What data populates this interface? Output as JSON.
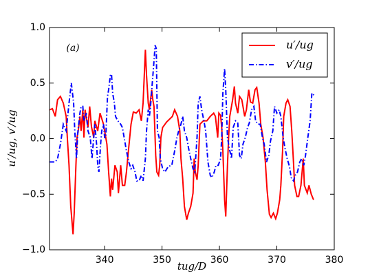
{
  "chart_data": {
    "type": "line",
    "annotation": "(a)",
    "xlabel": "tug/D",
    "ylabel": "u′/ug, v′/ug",
    "xlim": [
      330.4,
      380
    ],
    "xticks": [
      340,
      350,
      360,
      370,
      380
    ],
    "ylim": [
      -1,
      1
    ],
    "yticks": [
      {
        "value": -1,
        "label": "−1.0"
      },
      {
        "value": -0.5,
        "label": "−0.5"
      },
      {
        "value": 0,
        "label": "0.0"
      },
      {
        "value": 0.5,
        "label": "0.5"
      },
      {
        "value": 1,
        "label": "1.0"
      }
    ],
    "legend": "upper right",
    "series": [
      {
        "name": "u′/ug",
        "color": "#ff0000",
        "style": "solid",
        "x": [
          330.4,
          330.9,
          331.4,
          331.8,
          332.3,
          332.8,
          333.3,
          333.5,
          333.8,
          334.1,
          334.5,
          334.7,
          335.0,
          335.2,
          335.4,
          335.7,
          335.9,
          336.2,
          336.4,
          336.6,
          337.1,
          337.4,
          337.7,
          338.1,
          338.3,
          338.8,
          339.2,
          339.8,
          340.4,
          340.7,
          341.0,
          341.2,
          341.4,
          341.8,
          342.2,
          342.4,
          342.8,
          343.1,
          343.5,
          343.8,
          344.2,
          344.6,
          345.0,
          345.5,
          346.0,
          346.4,
          346.7,
          347.1,
          347.3,
          347.6,
          347.8,
          348.2,
          348.4,
          348.6,
          348.9,
          349.1,
          349.4,
          349.6,
          349.8,
          350.1,
          350.8,
          351.8,
          352.2,
          352.7,
          353.1,
          353.3,
          353.6,
          353.9,
          354.3,
          354.6,
          355.0,
          355.4,
          355.6,
          355.8,
          356.1,
          356.3,
          356.6,
          357.2,
          357.8,
          358.4,
          359.0,
          359.3,
          359.7,
          359.9,
          360.2,
          360.4,
          360.6,
          360.9,
          361.1,
          361.4,
          361.6,
          361.8,
          362.1,
          362.3,
          362.6,
          362.8,
          363.2,
          363.5,
          363.9,
          364.4,
          364.7,
          365.1,
          365.4,
          365.8,
          366.2,
          366.5,
          366.9,
          367.2,
          367.6,
          368.0,
          368.3,
          368.7,
          369.0,
          369.4,
          369.8,
          370.1,
          370.5,
          370.7,
          371.0,
          371.2,
          371.6,
          371.9,
          372.3,
          372.6,
          372.9,
          373.1,
          373.5,
          373.8,
          374.2,
          374.6,
          374.8,
          375.3,
          375.6,
          376.0,
          376.4
        ],
        "values": [
          0.26,
          0.27,
          0.2,
          0.35,
          0.38,
          0.32,
          0.2,
          0.01,
          -0.24,
          -0.61,
          -0.86,
          -0.67,
          -0.24,
          0.01,
          0.07,
          0.2,
          0.07,
          0.26,
          0.01,
          0.26,
          0.1,
          0.29,
          0.11,
          0.01,
          0.16,
          0.07,
          0.23,
          0.13,
          -0.05,
          -0.3,
          -0.52,
          -0.36,
          -0.46,
          -0.24,
          -0.3,
          -0.49,
          -0.24,
          -0.42,
          -0.42,
          -0.3,
          -0.08,
          0.13,
          0.24,
          0.23,
          0.26,
          0.16,
          0.32,
          0.8,
          0.57,
          0.32,
          0.26,
          0.44,
          0.35,
          0.29,
          -0.15,
          -0.3,
          -0.33,
          -0.24,
          0.01,
          0.1,
          0.15,
          0.2,
          0.26,
          0.2,
          0.07,
          -0.18,
          -0.36,
          -0.61,
          -0.73,
          -0.67,
          -0.61,
          -0.49,
          -0.18,
          -0.3,
          -0.37,
          -0.24,
          0.13,
          0.16,
          0.16,
          0.2,
          0.23,
          0.2,
          0.01,
          0.23,
          0.21,
          0.1,
          -0.11,
          -0.55,
          -0.7,
          -0.24,
          0.01,
          0.2,
          0.29,
          0.35,
          0.47,
          0.32,
          0.23,
          0.38,
          0.35,
          0.2,
          0.26,
          0.44,
          0.33,
          0.32,
          0.44,
          0.46,
          0.32,
          0.13,
          0.01,
          -0.21,
          -0.46,
          -0.68,
          -0.71,
          -0.67,
          -0.72,
          -0.67,
          -0.55,
          -0.42,
          -0.11,
          0.2,
          0.32,
          0.35,
          0.29,
          0.07,
          -0.21,
          -0.42,
          -0.52,
          -0.52,
          -0.42,
          -0.18,
          -0.42,
          -0.49,
          -0.42,
          -0.5,
          -0.55
        ]
      },
      {
        "name": "v′/ug",
        "color": "#0000ff",
        "style": "dashdot",
        "x": [
          330.4,
          331.4,
          331.8,
          332.3,
          332.8,
          333.3,
          333.8,
          334.2,
          334.6,
          334.8,
          335.1,
          335.3,
          335.7,
          335.9,
          336.2,
          336.4,
          336.8,
          337.1,
          337.5,
          337.8,
          338.1,
          338.3,
          338.6,
          338.8,
          339.0,
          339.3,
          339.5,
          339.8,
          340.0,
          340.2,
          340.5,
          340.7,
          341.0,
          341.2,
          341.4,
          341.7,
          341.9,
          342.3,
          342.8,
          343.1,
          343.5,
          343.8,
          344.2,
          344.6,
          344.9,
          345.3,
          345.6,
          346.0,
          346.4,
          346.7,
          347.1,
          347.3,
          347.6,
          347.8,
          348.0,
          348.3,
          348.5,
          348.8,
          349.0,
          349.2,
          349.5,
          349.7,
          350.1,
          350.5,
          351.1,
          351.7,
          352.2,
          352.6,
          352.9,
          353.3,
          353.6,
          353.9,
          354.3,
          354.6,
          355.0,
          355.4,
          355.7,
          356.1,
          356.3,
          356.6,
          356.9,
          357.3,
          357.6,
          358.0,
          358.4,
          358.7,
          359.1,
          359.4,
          359.8,
          360.2,
          360.4,
          360.6,
          360.9,
          361.1,
          361.4,
          361.7,
          362.1,
          362.4,
          362.8,
          363.2,
          363.5,
          363.8,
          364.1,
          364.5,
          364.9,
          365.2,
          365.6,
          366.0,
          366.3,
          366.7,
          367.1,
          367.5,
          367.8,
          368.2,
          368.6,
          368.9,
          369.3,
          369.6,
          370.0,
          370.4,
          370.7,
          371.1,
          371.4,
          371.8,
          372.2,
          372.5,
          372.9,
          373.2,
          373.6,
          374.0,
          374.3,
          374.7,
          375.0,
          375.4,
          375.8,
          376.1,
          376.5
        ],
        "values": [
          -0.21,
          -0.21,
          -0.18,
          -0.05,
          0.13,
          0.07,
          0.32,
          0.5,
          0.32,
          0.07,
          -0.18,
          0.04,
          0.23,
          0.29,
          0.29,
          0.16,
          0.23,
          0.07,
          0.01,
          -0.18,
          0.01,
          0.13,
          -0.05,
          -0.24,
          -0.3,
          -0.05,
          0.07,
          0.13,
          0.01,
          0.01,
          0.38,
          0.44,
          0.57,
          0.58,
          0.41,
          0.32,
          0.2,
          0.16,
          0.13,
          0.1,
          -0.02,
          -0.11,
          -0.21,
          -0.27,
          -0.24,
          -0.3,
          -0.38,
          -0.38,
          -0.33,
          -0.38,
          -0.18,
          0.07,
          0.26,
          0.2,
          0.29,
          0.5,
          0.63,
          0.84,
          0.81,
          0.07,
          0.01,
          -0.18,
          -0.27,
          -0.3,
          -0.25,
          -0.24,
          -0.11,
          0.01,
          0.07,
          0.13,
          0.2,
          0.07,
          0.01,
          -0.08,
          -0.18,
          -0.27,
          -0.3,
          0.01,
          0.32,
          0.38,
          0.26,
          0.16,
          0.07,
          -0.21,
          -0.33,
          -0.35,
          -0.3,
          -0.24,
          -0.24,
          -0.18,
          0.01,
          0.41,
          0.63,
          0.44,
          0.01,
          -0.08,
          -0.18,
          0.1,
          0.16,
          0.14,
          -0.15,
          -0.18,
          -0.05,
          0.01,
          0.1,
          0.14,
          0.26,
          0.29,
          0.16,
          0.13,
          0.13,
          0.01,
          -0.05,
          -0.21,
          -0.15,
          -0.02,
          0.07,
          0.29,
          0.23,
          0.26,
          0.2,
          0.01,
          -0.08,
          -0.18,
          -0.25,
          -0.35,
          -0.38,
          -0.33,
          -0.3,
          -0.21,
          -0.18,
          -0.24,
          -0.15,
          0.01,
          0.16,
          0.41,
          0.39
        ]
      }
    ]
  }
}
